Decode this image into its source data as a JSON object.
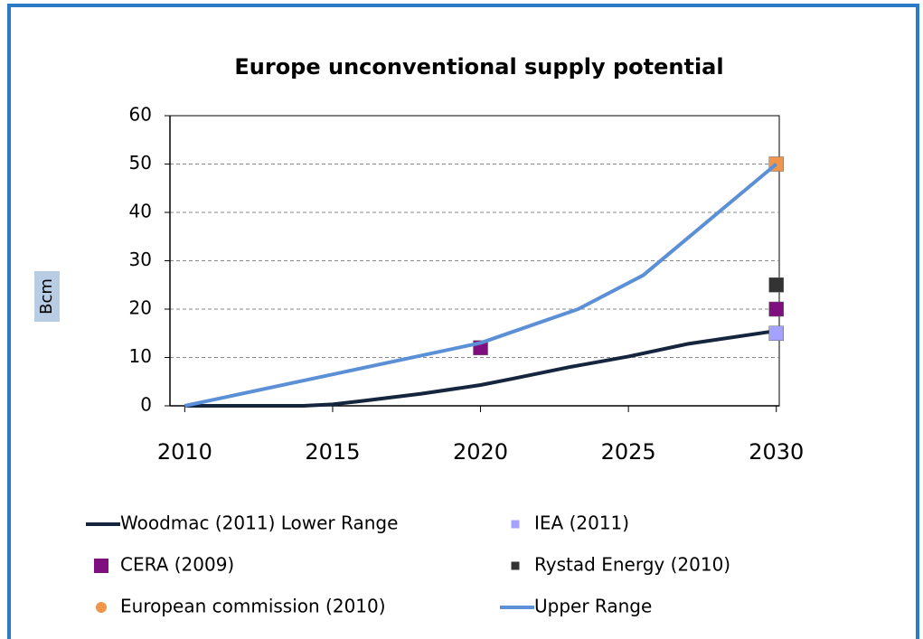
{
  "chart_data": {
    "type": "line",
    "title": "Europe unconventional supply potential",
    "y_label": "Bcm",
    "xlim": [
      2009.5,
      2030.1
    ],
    "xticks": [
      2010,
      2015,
      2020,
      2025,
      2030
    ],
    "ylim": [
      0,
      60
    ],
    "yticks": [
      0,
      10,
      20,
      30,
      40,
      50,
      60
    ],
    "grid": true,
    "series": [
      {
        "name": "Woodmac (2011) Lower Range",
        "type": "line",
        "color": "#14253d",
        "x": [
          2010,
          2014,
          2015,
          2016,
          2018,
          2020,
          2021,
          2023,
          2025,
          2027,
          2030
        ],
        "values": [
          0,
          0,
          0.3,
          1,
          2.5,
          4.3,
          5.5,
          8,
          10.2,
          12.8,
          15.5
        ]
      },
      {
        "name": "IEA (2011)",
        "type": "scatter",
        "color": "#a3a3ff",
        "x": [
          2030
        ],
        "values": [
          15
        ]
      },
      {
        "name": "CERA (2009)",
        "type": "scatter",
        "color": "#7f0f7e",
        "x": [
          2020,
          2030
        ],
        "values": [
          12,
          20
        ]
      },
      {
        "name": "Rystad Energy (2010)",
        "type": "scatter",
        "color": "#333333",
        "x": [
          2030
        ],
        "values": [
          25
        ]
      },
      {
        "name": "European commission (2010)",
        "type": "scatter",
        "color": "#f0964a",
        "legend_marker": "circle",
        "x": [
          2030
        ],
        "values": [
          50
        ]
      },
      {
        "name": "Upper Range",
        "type": "line",
        "color": "#5b8fd6",
        "x": [
          2010,
          2020,
          2023.3,
          2025.5,
          2030
        ],
        "values": [
          0,
          13,
          20,
          27,
          50
        ]
      }
    ]
  }
}
